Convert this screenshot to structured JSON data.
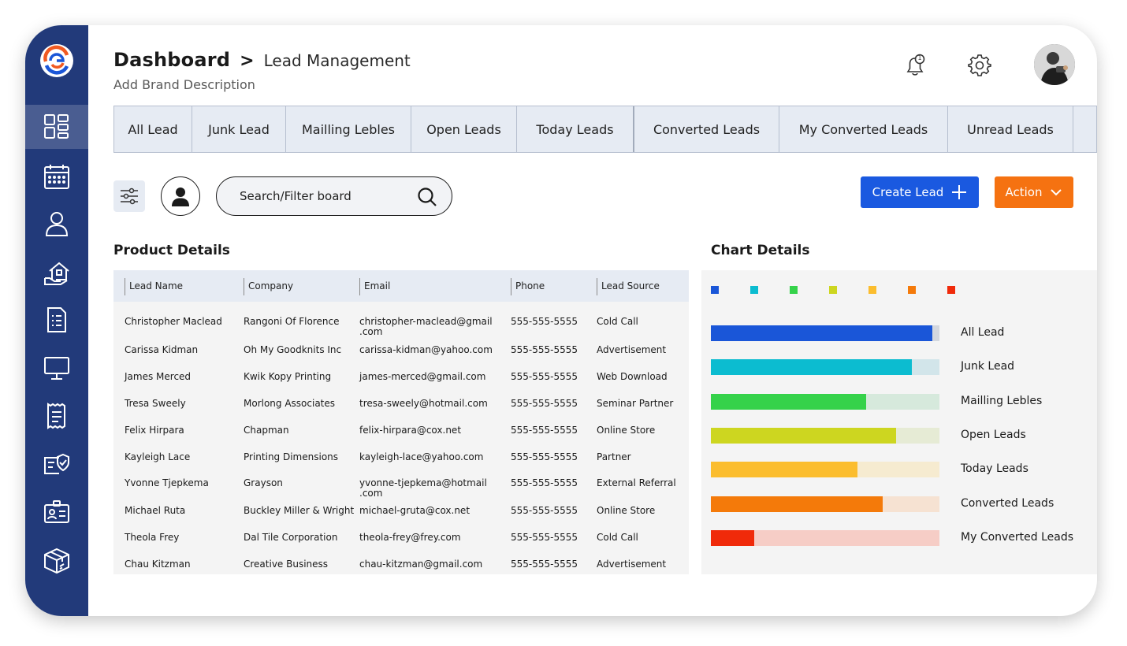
{
  "header": {
    "title": "Dashboard",
    "separator": ">",
    "subtitle": "Lead Management",
    "brand_description": "Add Brand Description",
    "notification_count": "1"
  },
  "sidebar": {
    "items": [
      {
        "icon": "dashboard-icon",
        "active": true
      },
      {
        "icon": "calendar-icon",
        "active": false
      },
      {
        "icon": "user-icon",
        "active": false
      },
      {
        "icon": "property-icon",
        "active": false
      },
      {
        "icon": "document-list-icon",
        "active": false
      },
      {
        "icon": "monitor-icon",
        "active": false
      },
      {
        "icon": "receipt-icon",
        "active": false
      },
      {
        "icon": "verified-card-icon",
        "active": false
      },
      {
        "icon": "id-badge-icon",
        "active": false
      },
      {
        "icon": "package-icon",
        "active": false
      }
    ]
  },
  "tabs": [
    {
      "label": "All Lead"
    },
    {
      "label": "Junk Lead"
    },
    {
      "label": "Mailling Lebles"
    },
    {
      "label": "Open Leads"
    },
    {
      "label": "Today Leads"
    },
    {
      "label": "Converted Leads"
    },
    {
      "label": "My Converted Leads"
    },
    {
      "label": "Unread Leads"
    }
  ],
  "toolbar": {
    "search_placeholder": "Search/Filter board",
    "create_label": "Create Lead",
    "action_label": "Action"
  },
  "product_section": {
    "title": "Product Details",
    "columns": [
      "Lead Name",
      "Company",
      "Email",
      "Phone",
      "Lead Source"
    ],
    "rows": [
      {
        "name": "Christopher Maclead",
        "company": "Rangoni Of Florence",
        "email": "christopher-maclead@gmail",
        "email2": ".com",
        "phone": "555-555-5555",
        "source": "Cold Call"
      },
      {
        "name": "Carissa Kidman",
        "company": "Oh My Goodknits Inc",
        "email": "carissa-kidman@yahoo.com",
        "email2": "",
        "phone": "555-555-5555",
        "source": "Advertisement"
      },
      {
        "name": "James Merced",
        "company": "Kwik Kopy Printing",
        "email": "james-merced@gmail.com",
        "email2": "",
        "phone": "555-555-5555",
        "source": "Web Download"
      },
      {
        "name": "Tresa Sweely",
        "company": "Morlong Associates",
        "email": "tresa-sweely@hotmail.com",
        "email2": "",
        "phone": "555-555-5555",
        "source": "Seminar Partner"
      },
      {
        "name": "Felix Hirpara",
        "company": "Chapman",
        "email": "felix-hirpara@cox.net",
        "email2": "",
        "phone": "555-555-5555",
        "source": "Online Store"
      },
      {
        "name": "Kayleigh Lace",
        "company": "Printing Dimensions",
        "email": "kayleigh-lace@yahoo.com",
        "email2": "",
        "phone": "555-555-5555",
        "source": "Partner"
      },
      {
        "name": "Yvonne Tjepkema",
        "company": "Grayson",
        "email": "yvonne-tjepkema@hotmail",
        "email2": ".com",
        "phone": "555-555-5555",
        "source": "External Referral"
      },
      {
        "name": "Michael Ruta",
        "company": "Buckley Miller & Wright",
        "email": "michael-gruta@cox.net",
        "email2": "",
        "phone": "555-555-5555",
        "source": "Online Store"
      },
      {
        "name": "Theola Frey",
        "company": "Dal Tile Corporation",
        "email": "theola-frey@frey.com",
        "email2": "",
        "phone": "555-555-5555",
        "source": "Cold Call"
      },
      {
        "name": "Chau Kitzman",
        "company": "Creative Business",
        "email": "chau-kitzman@gmail.com",
        "email2": "",
        "phone": "555-555-5555",
        "source": "Advertisement"
      }
    ]
  },
  "chart_section": {
    "title": "Chart Details"
  },
  "chart_data": {
    "type": "bar",
    "orientation": "horizontal",
    "categories": [
      "All Lead",
      "Junk Lead",
      "Mailling Lebles",
      "Open Leads",
      "Today Leads",
      "Converted Leads",
      "My Converted Leads"
    ],
    "values": [
      97,
      88,
      68,
      81,
      64,
      75,
      19
    ],
    "max": 100,
    "colors": [
      "#1a56d8",
      "#0cbcd0",
      "#35d24a",
      "#cdd620",
      "#fbbd2e",
      "#f47a0a",
      "#f02a0a"
    ],
    "track_colors": [
      "#d3d7de",
      "#d2e5ea",
      "#d6e9dc",
      "#e6ebd5",
      "#f6ebd0",
      "#f6e2d2",
      "#f6cdc6"
    ],
    "legend_colors": [
      "#1a56d8",
      "#0cbcd0",
      "#35d24a",
      "#cdd620",
      "#fbbd2e",
      "#f47a0a",
      "#f02a0a"
    ]
  },
  "colors": {
    "sidebar": "#223a7a",
    "create_button": "#1a59e0",
    "action_button": "#f57211"
  }
}
